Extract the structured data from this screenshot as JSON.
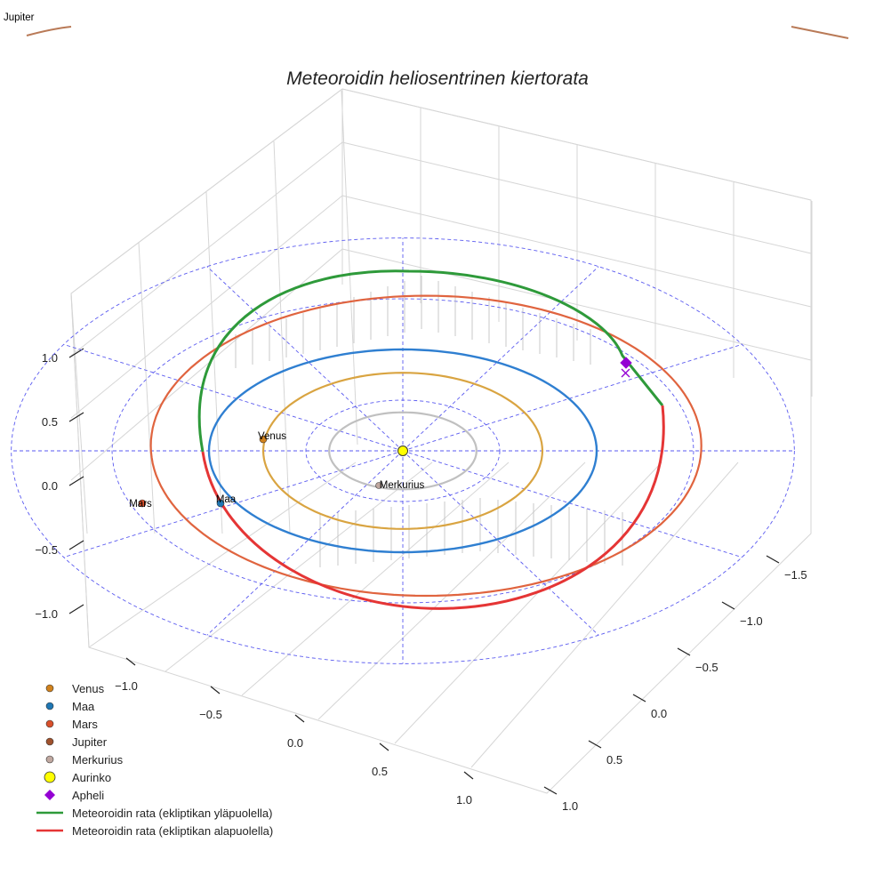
{
  "chart_data": {
    "type": "line-3d",
    "title": "Meteoroidin heliosentrinen kiertorata",
    "x_ticks": [
      "−1.5",
      "−1.0",
      "−0.5",
      "0.0",
      "0.5",
      "1.0"
    ],
    "y_ticks": [
      "−1.0",
      "−0.5",
      "0.0",
      "0.5",
      "1.0"
    ],
    "z_ticks": [
      "1.0",
      "0.5",
      "0.0",
      "−0.5",
      "−1.0"
    ],
    "bodies": [
      {
        "name": "Merkurius",
        "label": "Merkurius",
        "a_au": 0.39,
        "color": "#c0c0c0"
      },
      {
        "name": "Venus",
        "label": "Venus",
        "a_au": 0.72,
        "color": "#d9a441"
      },
      {
        "name": "Maa",
        "label": "Maa",
        "a_au": 1.0,
        "color": "#2f7fd1"
      },
      {
        "name": "Mars",
        "label": "Mars",
        "a_au": 1.52,
        "color": "#e0643f"
      },
      {
        "name": "Jupiter",
        "label": "Jupiter",
        "a_au": 5.2,
        "color": "#b97a57"
      }
    ],
    "meteoroid_orbit": {
      "above_color": "#2e9a3a",
      "below_color": "#e53535",
      "aphelion_au": 1.48,
      "perihelion_au": 0.96
    },
    "reference_circles_au": [
      0.5,
      1.0,
      1.5
    ],
    "legend": [
      {
        "label": "Venus",
        "marker": "circle",
        "color": "#d1821d"
      },
      {
        "label": "Maa",
        "marker": "circle",
        "color": "#1f77b4"
      },
      {
        "label": "Mars",
        "marker": "circle",
        "color": "#d9502b"
      },
      {
        "label": "Jupiter",
        "marker": "circle",
        "color": "#a0522d"
      },
      {
        "label": "Merkurius",
        "marker": "circle",
        "color": "#c0a8a0"
      },
      {
        "label": "Aurinko",
        "marker": "circle-large",
        "color": "#ffff00"
      },
      {
        "label": "Apheli",
        "marker": "diamond",
        "color": "#9400d3"
      },
      {
        "label": "Meteoroidin rata (ekliptikan yläpuolella)",
        "marker": "line",
        "color": "#2e9a3a"
      },
      {
        "label": "Meteoroidin rata (ekliptikan alapuolella)",
        "marker": "line",
        "color": "#e53535"
      }
    ]
  }
}
